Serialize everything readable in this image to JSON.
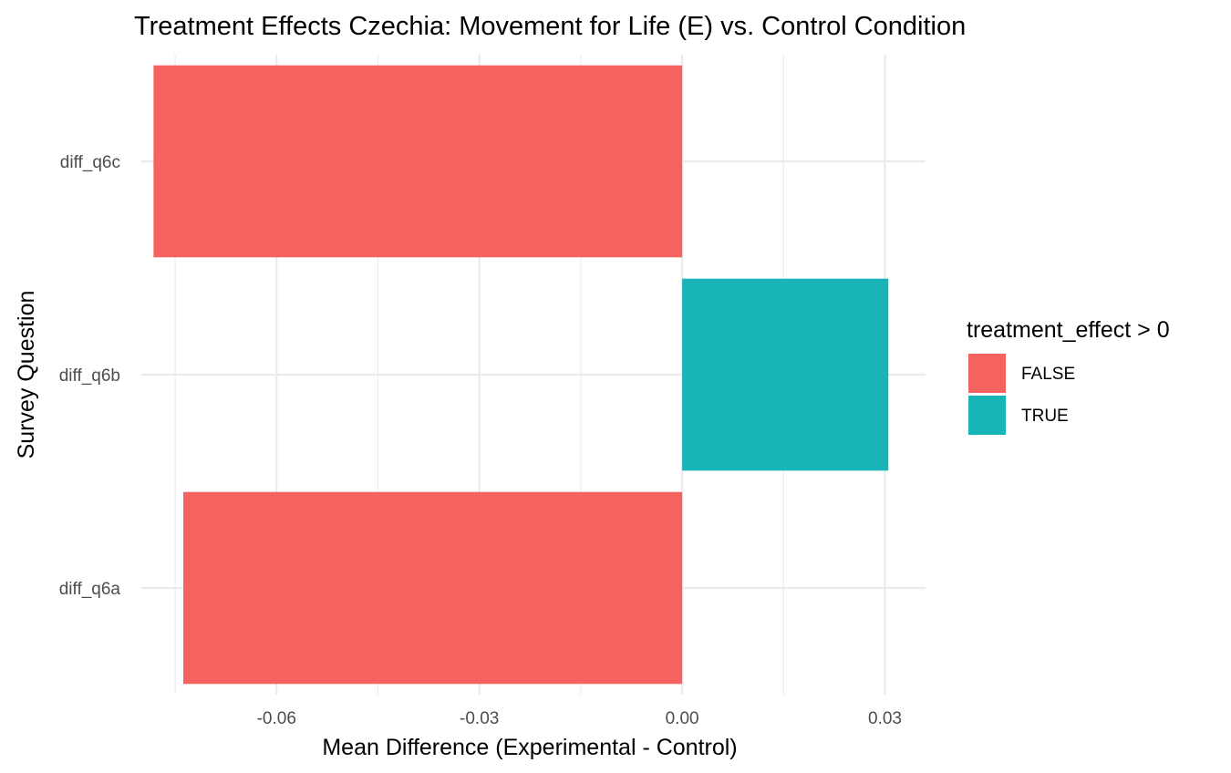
{
  "chart_data": {
    "type": "bar",
    "orientation": "horizontal",
    "title": "Treatment Effects Czechia: Movement for Life (E) vs. Control Condition",
    "xlabel": "Mean Difference (Experimental - Control)",
    "ylabel": "Survey Question",
    "categories": [
      "diff_q6a",
      "diff_q6b",
      "diff_q6c"
    ],
    "values": [
      -0.0738,
      0.0305,
      -0.0782
    ],
    "groups": [
      "FALSE",
      "TRUE",
      "FALSE"
    ],
    "xlim": [
      -0.08,
      0.036
    ],
    "x_ticks": [
      -0.06,
      -0.03,
      0.0,
      0.03
    ],
    "x_tick_labels": [
      "-0.06",
      "-0.03",
      "0.00",
      "0.03"
    ],
    "grid": true,
    "legend": {
      "title": "treatment_effect > 0",
      "placement": "right",
      "entries": [
        {
          "label": "FALSE",
          "color": "#F8766D"
        },
        {
          "label": "TRUE",
          "color": "#00BFC4"
        }
      ]
    }
  },
  "colors": {
    "FALSE": "#F46360",
    "TRUE": "#19B4B8"
  }
}
